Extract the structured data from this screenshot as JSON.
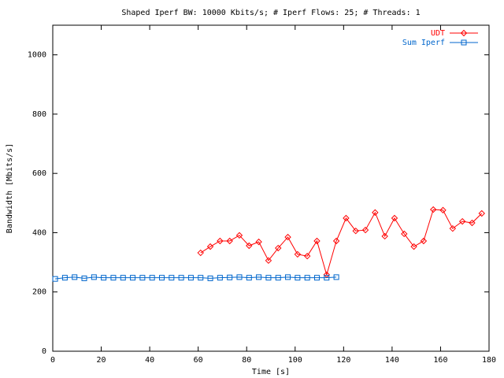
{
  "chart_data": {
    "type": "line",
    "title": "Shaped Iperf BW: 10000 Kbits/s; # Iperf Flows: 25; # Threads: 1",
    "x_label": "Time [s]",
    "y_label": "Bandwidth [Mbits/s]",
    "xlim": [
      0,
      180
    ],
    "xticks": [
      0,
      20,
      40,
      60,
      80,
      100,
      120,
      140,
      160,
      180
    ],
    "ylim": [
      0,
      1100
    ],
    "yticks": [
      0,
      200,
      400,
      600,
      800,
      1000
    ],
    "legend": "top-right",
    "series": [
      {
        "name": "UDT",
        "color": "#ff0000",
        "marker": "diamond",
        "x": [
          61,
          65,
          69,
          73,
          77,
          81,
          85,
          89,
          93,
          97,
          101,
          105,
          109,
          113,
          117,
          121,
          125,
          129,
          133,
          137,
          141,
          145,
          149,
          153,
          157,
          161,
          165,
          169,
          173,
          177
        ],
        "values": [
          332,
          353,
          372,
          372,
          391,
          356,
          369,
          306,
          348,
          385,
          327,
          321,
          372,
          258,
          372,
          449,
          406,
          409,
          468,
          388,
          449,
          396,
          353,
          372,
          478,
          476,
          414,
          438,
          433,
          465
        ]
      },
      {
        "name": "Sum Iperf",
        "color": "#0066cc",
        "marker": "square",
        "x": [
          1,
          5,
          9,
          13,
          17,
          21,
          25,
          29,
          33,
          37,
          41,
          45,
          49,
          53,
          57,
          61,
          65,
          69,
          73,
          77,
          81,
          85,
          89,
          93,
          97,
          101,
          105,
          109,
          113,
          117
        ],
        "values": [
          244,
          248,
          250,
          246,
          250,
          248,
          248,
          248,
          248,
          248,
          248,
          248,
          248,
          248,
          248,
          248,
          246,
          248,
          249,
          250,
          248,
          250,
          248,
          248,
          250,
          248,
          248,
          248,
          248,
          250
        ]
      }
    ]
  }
}
